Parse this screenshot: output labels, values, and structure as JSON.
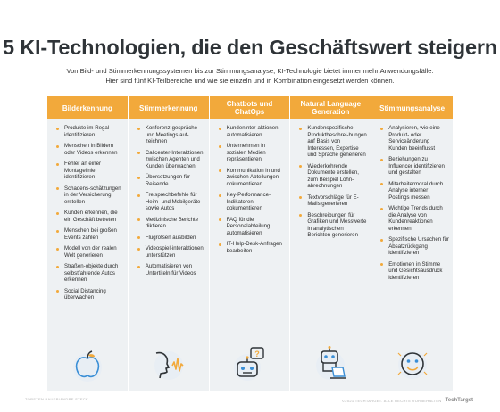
{
  "title": "5 KI-Technologien, die den Geschäftswert steigern",
  "intro": "Von Bild- und Stimmerkennungssystemen bis zur Stimmungsanalyse, KI-Technologie bietet immer mehr Anwendungsfälle. Hier sind fünf KI-Teilbereiche und wie sie einzeln und in Kombination eingesetzt werden können.",
  "colors": {
    "accent": "#f2a93b",
    "panel": "#eef1f3",
    "icon_stroke": "#3b8fd6",
    "title": "#2f3438"
  },
  "columns": [
    {
      "heading": "Bilderkennung",
      "icon": "apple-icon",
      "items": [
        "Produkte im Regal identifizieren",
        "Menschen in Bildern oder Videos erkennen",
        "Fehler an einer Montagelinie identifizieren",
        "Schadens-schätzungen in der Versicherung erstellen",
        "Kunden erkennen, die ein Geschäft betreten",
        "Menschen bei großen Events zählen",
        "Modell von der realen Welt generieren",
        "Straßen-objekte durch selbstfahrende Autos erkennen",
        "Social Distancing überwachen"
      ]
    },
    {
      "heading": "Stimmerkennung",
      "icon": "voice-icon",
      "items": [
        "Konferenz-gespräche und Meetings auf-zeichnen",
        "Callcenter-Interaktionen zwischen Agenten und Kunden überwachen",
        "Übersetzungen für Reisende",
        "Freisprechbefehle für Heim- und Mobilgeräte sowie Autos",
        "Medizinische Berichte diktieren",
        "Flugrotsen ausbilden",
        "Videospiel-interaktionen unterstützen",
        "Automatisieren von Untertiteln für Videos"
      ]
    },
    {
      "heading": "Chatbots und ChatOps",
      "icon": "chatbot-icon",
      "items": [
        "Kundeninter-aktionen automatisieren",
        "Unternehmen in sozialen Medien repräsentieren",
        "Kommunikation in und zwischen Abteilungen dokumentieren",
        "Key-Performance-Indikatoren dokumentieren",
        "FAQ für die Personalabteilung automatisieren",
        "IT-Help-Desk-Anfragen bearbeiten"
      ]
    },
    {
      "heading": "Natural Language Generation",
      "icon": "robot-laptop-icon",
      "items": [
        "Kundenspezifische Produktbeschrei-bungen auf Basis von Interessen, Expertise und Sprache generieren",
        "Wiederkehrende Dokumente erstellen, zum Beispiel Lohn-abrechnungen",
        "Textvorschläge für E-Mails generieren",
        "Beschreibungen für Grafiken und Messwerte in analytischen Berichten generieren"
      ]
    },
    {
      "heading": "Stimmungsanalyse",
      "icon": "smiley-icon",
      "items": [
        "Analysieren, wie eine Produkt- oder Serviceänderung Kunden beeinflusst",
        "Beziehungen zu Influencer identifizieren und gestalten",
        "Mitarbeitermoral durch Analyse interner Postings messen",
        "Wichtige Trends durch die Analyse von Kundenreaktionen erkennen",
        "Spezifische Ursachen für Absatzrückgang identifizieren",
        "Emotionen in Stimme und Gesichtsausdruck identifizieren"
      ]
    }
  ],
  "footer": {
    "left": "TORSTEN BAUER/ANDRE STECK",
    "right": "©2021 TECHTARGET. ALLE RECHTE VORBEHALTEN",
    "logo": "TechTarget"
  }
}
